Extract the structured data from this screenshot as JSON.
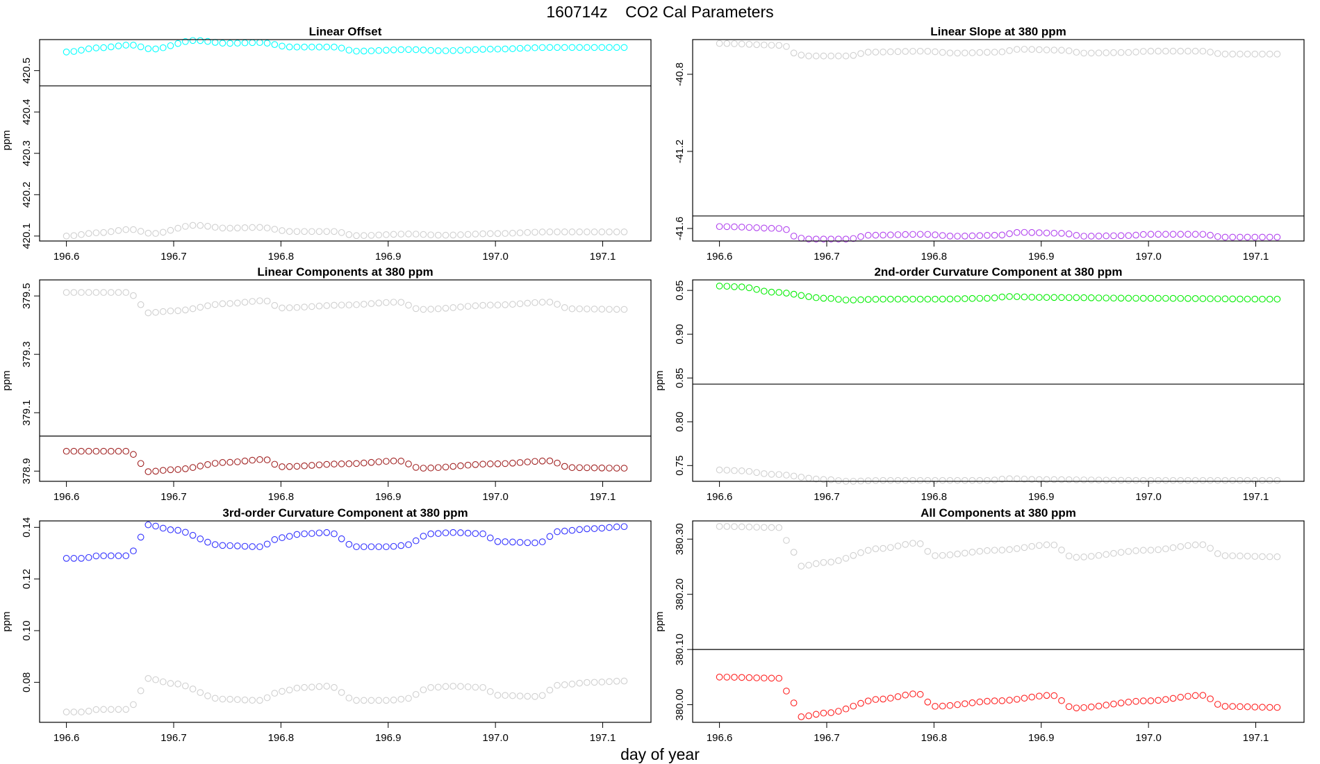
{
  "page": {
    "title": "160714z    CO2 Cal Parameters",
    "xlabel": "day of year"
  },
  "colors": {
    "reference_series": "#cfcfcf",
    "hline": "#000000",
    "frame": "#000000"
  },
  "chart_data": [
    {
      "type": "scatter",
      "title": "Linear Offset",
      "xlabel": "",
      "ylabel": "ppm",
      "xlim": [
        196.575,
        197.145
      ],
      "ylim": [
        420.088,
        420.575
      ],
      "xticks": [
        "196.6",
        "196.7",
        "196.8",
        "196.9",
        "197.0",
        "197.1"
      ],
      "yticks": [
        "420.1",
        "420.2",
        "420.3",
        "420.4",
        "420.5"
      ],
      "hline": 420.463,
      "x": {
        "start": 196.6,
        "end": 197.12,
        "count": 76
      },
      "series": [
        {
          "color": "#00ffff",
          "anchors": [
            [
              196.6,
              420.545
            ],
            [
              196.63,
              420.555
            ],
            [
              196.66,
              420.562
            ],
            [
              196.68,
              420.552
            ],
            [
              196.72,
              420.573
            ],
            [
              196.75,
              420.566
            ],
            [
              196.78,
              420.568
            ],
            [
              196.81,
              420.557
            ],
            [
              196.85,
              420.557
            ],
            [
              196.87,
              420.547
            ],
            [
              196.92,
              420.551
            ],
            [
              196.95,
              420.548
            ],
            [
              197.0,
              420.552
            ],
            [
              197.05,
              420.556
            ],
            [
              197.12,
              420.556
            ]
          ]
        },
        {
          "color": "#cfcfcf",
          "anchors": [
            [
              196.6,
              420.1
            ],
            [
              196.63,
              420.108
            ],
            [
              196.66,
              420.116
            ],
            [
              196.68,
              420.106
            ],
            [
              196.72,
              420.126
            ],
            [
              196.75,
              420.119
            ],
            [
              196.78,
              420.121
            ],
            [
              196.81,
              420.111
            ],
            [
              196.85,
              420.111
            ],
            [
              196.87,
              420.101
            ],
            [
              196.92,
              420.105
            ],
            [
              196.95,
              420.102
            ],
            [
              197.0,
              420.106
            ],
            [
              197.05,
              420.11
            ],
            [
              197.12,
              420.11
            ]
          ]
        }
      ]
    },
    {
      "type": "scatter",
      "title": "Linear Slope at 380 ppm",
      "xlabel": "",
      "ylabel": "",
      "xlim": [
        196.575,
        197.145
      ],
      "ylim": [
        -41.665,
        -40.62
      ],
      "xticks": [
        "196.6",
        "196.7",
        "196.8",
        "196.9",
        "197.0",
        "197.1"
      ],
      "yticks": [
        "-41.6",
        "-41.2",
        "-40.8"
      ],
      "hline": -41.535,
      "x": {
        "start": 196.6,
        "end": 197.12,
        "count": 76
      },
      "series": [
        {
          "color": "#b040ee",
          "anchors": [
            [
              196.6,
              -41.59
            ],
            [
              196.66,
              -41.6
            ],
            [
              196.67,
              -41.64
            ],
            [
              196.68,
              -41.655
            ],
            [
              196.72,
              -41.655
            ],
            [
              196.74,
              -41.635
            ],
            [
              196.79,
              -41.63
            ],
            [
              196.82,
              -41.64
            ],
            [
              196.86,
              -41.635
            ],
            [
              196.88,
              -41.62
            ],
            [
              196.92,
              -41.625
            ],
            [
              196.94,
              -41.64
            ],
            [
              196.98,
              -41.637
            ],
            [
              197.0,
              -41.63
            ],
            [
              197.05,
              -41.63
            ],
            [
              197.07,
              -41.645
            ],
            [
              197.12,
              -41.645
            ]
          ]
        },
        {
          "color": "#cfcfcf",
          "anchors": [
            [
              196.6,
              -40.64
            ],
            [
              196.66,
              -40.65
            ],
            [
              196.67,
              -40.69
            ],
            [
              196.68,
              -40.705
            ],
            [
              196.72,
              -40.705
            ],
            [
              196.74,
              -40.685
            ],
            [
              196.79,
              -40.68
            ],
            [
              196.82,
              -40.69
            ],
            [
              196.86,
              -40.685
            ],
            [
              196.88,
              -40.67
            ],
            [
              196.92,
              -40.675
            ],
            [
              196.94,
              -40.69
            ],
            [
              196.98,
              -40.687
            ],
            [
              197.0,
              -40.68
            ],
            [
              197.05,
              -40.68
            ],
            [
              197.07,
              -40.695
            ],
            [
              197.12,
              -40.695
            ]
          ]
        }
      ]
    },
    {
      "type": "scatter",
      "title": "Linear Components at 380 ppm",
      "xlabel": "",
      "ylabel": "ppm",
      "xlim": [
        196.575,
        197.145
      ],
      "ylim": [
        378.865,
        379.555
      ],
      "xticks": [
        "196.6",
        "196.7",
        "196.8",
        "196.9",
        "197.0",
        "197.1"
      ],
      "yticks": [
        "378.9",
        "379.1",
        "379.3",
        "379.5"
      ],
      "hline": 379.02,
      "x": {
        "start": 196.6,
        "end": 197.12,
        "count": 76
      },
      "series": [
        {
          "color": "#a02020",
          "anchors": [
            [
              196.6,
              378.968
            ],
            [
              196.66,
              378.968
            ],
            [
              196.665,
              378.945
            ],
            [
              196.675,
              378.898
            ],
            [
              196.7,
              378.905
            ],
            [
              196.75,
              378.93
            ],
            [
              196.785,
              378.94
            ],
            [
              196.8,
              378.915
            ],
            [
              196.86,
              378.925
            ],
            [
              196.91,
              378.935
            ],
            [
              196.93,
              378.91
            ],
            [
              197.0,
              378.925
            ],
            [
              197.05,
              378.935
            ],
            [
              197.07,
              378.912
            ],
            [
              197.12,
              378.91
            ]
          ]
        },
        {
          "color": "#cfcfcf",
          "anchors": [
            [
              196.6,
              379.512
            ],
            [
              196.66,
              379.512
            ],
            [
              196.665,
              379.489
            ],
            [
              196.675,
              379.442
            ],
            [
              196.7,
              379.449
            ],
            [
              196.75,
              379.474
            ],
            [
              196.785,
              379.484
            ],
            [
              196.8,
              379.459
            ],
            [
              196.86,
              379.469
            ],
            [
              196.91,
              379.479
            ],
            [
              196.93,
              379.454
            ],
            [
              197.0,
              379.469
            ],
            [
              197.05,
              379.479
            ],
            [
              197.07,
              379.456
            ],
            [
              197.12,
              379.454
            ]
          ]
        }
      ]
    },
    {
      "type": "scatter",
      "title": "2nd-order Curvature Component at 380 ppm",
      "xlabel": "",
      "ylabel": "ppm",
      "xlim": [
        196.575,
        197.145
      ],
      "ylim": [
        0.732,
        0.962
      ],
      "xticks": [
        "196.6",
        "196.7",
        "196.8",
        "196.9",
        "197.0",
        "197.1"
      ],
      "yticks": [
        "0.75",
        "0.80",
        "0.85",
        "0.90",
        "0.95"
      ],
      "hline": 0.843,
      "x": {
        "start": 196.6,
        "end": 197.12,
        "count": 76
      },
      "series": [
        {
          "color": "#00ee00",
          "anchors": [
            [
              196.6,
              0.955
            ],
            [
              196.62,
              0.954
            ],
            [
              196.65,
              0.948
            ],
            [
              196.7,
              0.941
            ],
            [
              196.72,
              0.939
            ],
            [
              196.75,
              0.94
            ],
            [
              196.8,
              0.94
            ],
            [
              196.85,
              0.941
            ],
            [
              196.87,
              0.943
            ],
            [
              196.9,
              0.942
            ],
            [
              197.0,
              0.941
            ],
            [
              197.12,
              0.94
            ]
          ]
        },
        {
          "color": "#cfcfcf",
          "anchors": [
            [
              196.6,
              0.745
            ],
            [
              196.62,
              0.744
            ],
            [
              196.65,
              0.74
            ],
            [
              196.7,
              0.734
            ],
            [
              196.72,
              0.732
            ],
            [
              196.75,
              0.733
            ],
            [
              196.8,
              0.733
            ],
            [
              196.85,
              0.733
            ],
            [
              196.87,
              0.735
            ],
            [
              196.9,
              0.734
            ],
            [
              197.0,
              0.733
            ],
            [
              197.12,
              0.733
            ]
          ]
        }
      ]
    },
    {
      "type": "scatter",
      "title": "3rd-order Curvature Component at 380 ppm",
      "xlabel": "",
      "ylabel": "ppm",
      "xlim": [
        196.575,
        197.145
      ],
      "ylim": [
        0.0645,
        0.1425
      ],
      "xticks": [
        "196.6",
        "196.7",
        "196.8",
        "196.9",
        "197.0",
        "197.1"
      ],
      "yticks": [
        "0.08",
        "0.10",
        "0.12",
        "0.14"
      ],
      "hline": null,
      "x": {
        "start": 196.6,
        "end": 197.12,
        "count": 76
      },
      "series": [
        {
          "color": "#3030ff",
          "anchors": [
            [
              196.6,
              0.128
            ],
            [
              196.615,
              0.128
            ],
            [
              196.63,
              0.129
            ],
            [
              196.655,
              0.129
            ],
            [
              196.66,
              0.129
            ],
            [
              196.665,
              0.133
            ],
            [
              196.675,
              0.141
            ],
            [
              196.7,
              0.139
            ],
            [
              196.745,
              0.133
            ],
            [
              196.78,
              0.1325
            ],
            [
              196.8,
              0.136
            ],
            [
              196.82,
              0.1375
            ],
            [
              196.845,
              0.138
            ],
            [
              196.87,
              0.1325
            ],
            [
              196.9,
              0.1325
            ],
            [
              196.915,
              0.133
            ],
            [
              196.94,
              0.1375
            ],
            [
              196.96,
              0.138
            ],
            [
              196.99,
              0.1375
            ],
            [
              197.0,
              0.1345
            ],
            [
              197.04,
              0.134
            ],
            [
              197.06,
              0.1385
            ],
            [
              197.09,
              0.1395
            ],
            [
              197.12,
              0.1403
            ]
          ]
        },
        {
          "color": "#cfcfcf",
          "anchors": [
            [
              196.6,
              0.0685
            ],
            [
              196.615,
              0.0685
            ],
            [
              196.63,
              0.0695
            ],
            [
              196.655,
              0.0695
            ],
            [
              196.66,
              0.0695
            ],
            [
              196.665,
              0.0735
            ],
            [
              196.675,
              0.0815
            ],
            [
              196.7,
              0.0795
            ],
            [
              196.745,
              0.0735
            ],
            [
              196.78,
              0.073
            ],
            [
              196.8,
              0.0765
            ],
            [
              196.82,
              0.078
            ],
            [
              196.845,
              0.0785
            ],
            [
              196.87,
              0.073
            ],
            [
              196.9,
              0.073
            ],
            [
              196.915,
              0.0735
            ],
            [
              196.94,
              0.078
            ],
            [
              196.96,
              0.0785
            ],
            [
              196.99,
              0.078
            ],
            [
              197.0,
              0.075
            ],
            [
              197.04,
              0.0745
            ],
            [
              197.06,
              0.079
            ],
            [
              197.09,
              0.08
            ],
            [
              197.12,
              0.0805
            ]
          ]
        }
      ]
    },
    {
      "type": "scatter",
      "title": "All Components at 380 ppm",
      "xlabel": "",
      "ylabel": "ppm",
      "xlim": [
        196.575,
        197.145
      ],
      "ylim": [
        379.968,
        380.333
      ],
      "xticks": [
        "196.6",
        "196.7",
        "196.8",
        "196.9",
        "197.0",
        "197.1"
      ],
      "yticks": [
        "380.00",
        "380.10",
        "380.20",
        "380.30"
      ],
      "hline": 380.1,
      "x": {
        "start": 196.6,
        "end": 197.12,
        "count": 76
      },
      "series": [
        {
          "color": "#ff2020",
          "anchors": [
            [
              196.6,
              380.05
            ],
            [
              196.655,
              380.048
            ],
            [
              196.665,
              380.02
            ],
            [
              196.675,
              379.978
            ],
            [
              196.7,
              379.985
            ],
            [
              196.75,
              380.01
            ],
            [
              196.785,
              380.02
            ],
            [
              196.8,
              379.997
            ],
            [
              196.86,
              380.007
            ],
            [
              196.91,
              380.017
            ],
            [
              196.93,
              379.994
            ],
            [
              197.0,
              380.007
            ],
            [
              197.05,
              380.017
            ],
            [
              197.07,
              379.997
            ],
            [
              197.12,
              379.995
            ]
          ]
        },
        {
          "color": "#cfcfcf",
          "anchors": [
            [
              196.6,
              380.323
            ],
            [
              196.655,
              380.321
            ],
            [
              196.665,
              380.293
            ],
            [
              196.675,
              380.251
            ],
            [
              196.7,
              380.258
            ],
            [
              196.75,
              380.283
            ],
            [
              196.785,
              380.293
            ],
            [
              196.8,
              380.27
            ],
            [
              196.86,
              380.28
            ],
            [
              196.91,
              380.29
            ],
            [
              196.93,
              380.267
            ],
            [
              197.0,
              380.28
            ],
            [
              197.05,
              380.29
            ],
            [
              197.07,
              380.27
            ],
            [
              197.12,
              380.268
            ]
          ]
        }
      ]
    }
  ]
}
